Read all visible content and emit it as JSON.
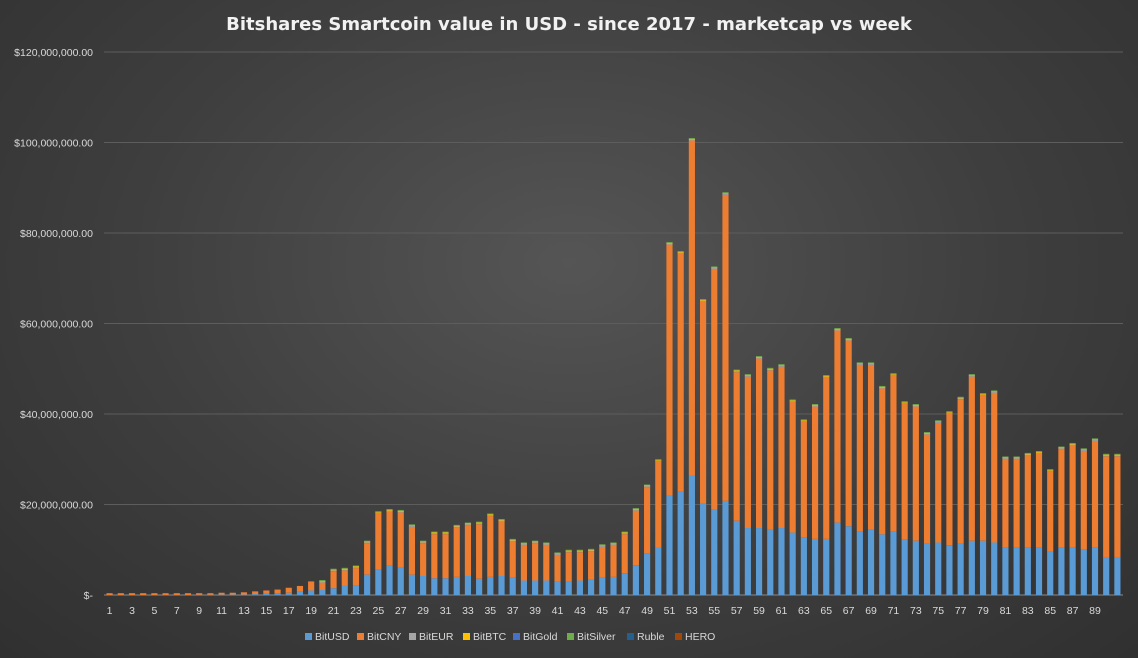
{
  "chart_data": {
    "type": "bar",
    "stacked": true,
    "title": "Bitshares  Smartcoin  value  in  USD  -  since  2017  -  marketcap   vs  week",
    "xlabel": "",
    "ylabel": "",
    "ylim": [
      0,
      120000000
    ],
    "yticks": [
      "$-",
      "$20,000,000.00",
      "$40,000,000.00",
      "$60,000,000.00",
      "$80,000,000.00",
      "$100,000,000.00",
      "$120,000,000.00"
    ],
    "ytick_values": [
      0,
      20000000,
      40000000,
      60000000,
      80000000,
      100000000,
      120000000
    ],
    "xtick_labels": [
      "1",
      "3",
      "5",
      "7",
      "9",
      "11",
      "13",
      "15",
      "17",
      "19",
      "21",
      "23",
      "25",
      "27",
      "29",
      "31",
      "33",
      "35",
      "37",
      "39",
      "41",
      "43",
      "45",
      "47",
      "49",
      "51",
      "53",
      "55",
      "57",
      "59",
      "61",
      "63",
      "65",
      "67",
      "69",
      "71",
      "73",
      "75",
      "77",
      "79",
      "81",
      "83",
      "85",
      "87",
      "89"
    ],
    "grid": true,
    "legend_position": "bottom",
    "weeks": 91,
    "totals": [
      0.4,
      0.4,
      0.4,
      0.4,
      0.4,
      0.4,
      0.4,
      0.4,
      0.4,
      0.4,
      0.5,
      0.5,
      0.6,
      0.8,
      1.0,
      1.2,
      1.6,
      2.0,
      3.0,
      3.3,
      5.8,
      6.0,
      6.5,
      12,
      18.5,
      19,
      18.8,
      15.6,
      12,
      14,
      14,
      15.5,
      16,
      16.2,
      18,
      16.8,
      12.4,
      11.6,
      12,
      11.6,
      9.4,
      10,
      10,
      10.2,
      11.2,
      11.6,
      14,
      19.2,
      24.4,
      30,
      78,
      76,
      101,
      65.4,
      72.6,
      89,
      49.8,
      48.8,
      52.8,
      50.2,
      51,
      43.2,
      38.8,
      42.2,
      48.6,
      59,
      56.8,
      51.4,
      51.4,
      46.2,
      49,
      42.8,
      42.2,
      36,
      38.6,
      40.6,
      43.8,
      48.8,
      44.6,
      45.2,
      30.6,
      30.6,
      31.4,
      31.8,
      27.8,
      32.8,
      33.6,
      32.4,
      34.6,
      31.2,
      31.2
    ],
    "bitusd": [
      0,
      0,
      0,
      0,
      0,
      0,
      0,
      0,
      0.05,
      0.05,
      0.1,
      0.1,
      0.1,
      0.2,
      0.3,
      0.4,
      0.5,
      0.7,
      1.0,
      1.1,
      1.5,
      2.0,
      2.2,
      4.5,
      5.6,
      6.5,
      6.0,
      4.5,
      4.2,
      3.7,
      3.7,
      4.0,
      4.2,
      3.6,
      4.0,
      4.2,
      3.8,
      3.2,
      3.2,
      3.2,
      3.0,
      3.0,
      3.2,
      3.4,
      3.8,
      4.0,
      4.8,
      6.6,
      9.2,
      10.4,
      22,
      22.8,
      26.4,
      20.2,
      19,
      20.8,
      16.4,
      14.8,
      14.8,
      14.4,
      14.8,
      13.8,
      12.8,
      12.4,
      12.4,
      16,
      15.2,
      14,
      14.4,
      13.4,
      14,
      12.2,
      12,
      11.4,
      11.6,
      11,
      11.4,
      12,
      12,
      11.6,
      10.6,
      10.6,
      10.6,
      10.6,
      9.6,
      10.6,
      10.6,
      10,
      10.6,
      8.4,
      8.4
    ],
    "series": [
      {
        "name": "BitUSD",
        "color": "#5b9bd5"
      },
      {
        "name": "BitCNY",
        "color": "#ed7d31"
      },
      {
        "name": "BitEUR",
        "color": "#a5a5a5"
      },
      {
        "name": "BitBTC",
        "color": "#ffc000"
      },
      {
        "name": "BitGold",
        "color": "#4472c4"
      },
      {
        "name": "BitSilver",
        "color": "#70ad47"
      },
      {
        "name": "Ruble",
        "color": "#255e91"
      },
      {
        "name": "HERO",
        "color": "#9e480e"
      }
    ],
    "value_unit": "million USD"
  }
}
